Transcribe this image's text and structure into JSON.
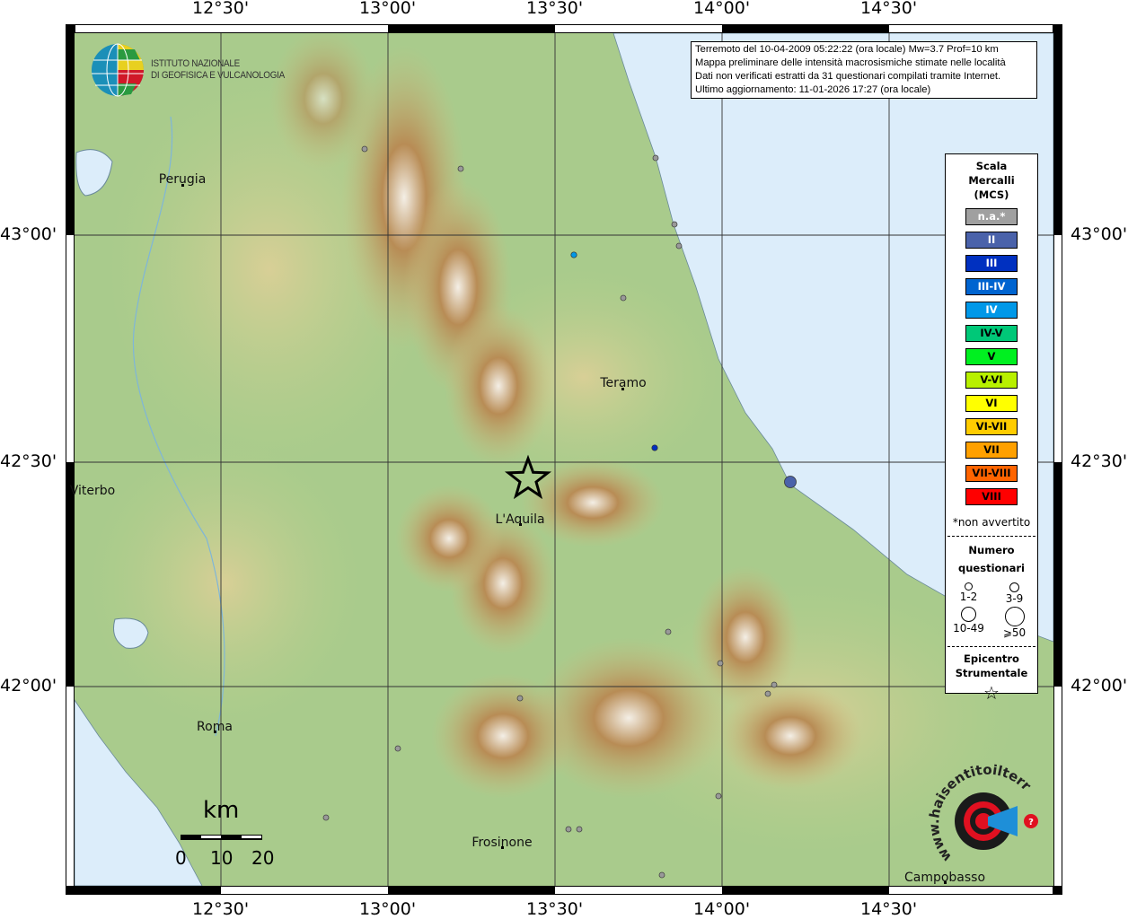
{
  "axes": {
    "lon_ticks": [
      "12°30'",
      "13°00'",
      "13°30'",
      "14°00'",
      "14°30'"
    ],
    "lat_ticks": [
      "43°00'",
      "42°30'",
      "42°00'"
    ]
  },
  "logo_ingv": {
    "line1": "ISTITUTO NAZIONALE",
    "line2": "DI GEOFISICA E VULCANOLOGIA"
  },
  "logo_hsit": {
    "text": "www.haisentitoilterremoto.it"
  },
  "info": {
    "line1": "Terremoto del 10-04-2009 05:22:22 (ora locale) Mw=3.7 Prof=10 km",
    "line2": "Mappa preliminare delle intensità macrosismiche stimate nelle località",
    "line3": "Dati non verificati estratti da 31 questionari compilati tramite Internet.",
    "line4": "Ultimo aggiornamento: 11-01-2026 17:27 (ora locale)"
  },
  "cities": [
    {
      "name": "Perugia"
    },
    {
      "name": "Teramo"
    },
    {
      "name": "Viterbo"
    },
    {
      "name": "L'Aquila"
    },
    {
      "name": "Roma"
    },
    {
      "name": "Frosinone"
    },
    {
      "name": "Campobasso"
    }
  ],
  "legend": {
    "title": [
      "Scala",
      "Mercalli",
      "(MCS)"
    ],
    "scale": [
      {
        "label": "n.a.*",
        "color": "#a0a0a0",
        "text": "#ffffff"
      },
      {
        "label": "II",
        "color": "#4a62aa",
        "text": "#ffffff"
      },
      {
        "label": "III",
        "color": "#0030c0",
        "text": "#ffffff"
      },
      {
        "label": "III-IV",
        "color": "#0064d0",
        "text": "#ffffff"
      },
      {
        "label": "IV",
        "color": "#0098e8",
        "text": "#ffffff"
      },
      {
        "label": "IV-V",
        "color": "#00c878",
        "text": "#000000"
      },
      {
        "label": "V",
        "color": "#00f020",
        "text": "#000000"
      },
      {
        "label": "V-VI",
        "color": "#b8f000",
        "text": "#000000"
      },
      {
        "label": "VI",
        "color": "#ffff00",
        "text": "#000000"
      },
      {
        "label": "VI-VII",
        "color": "#ffcc00",
        "text": "#000000"
      },
      {
        "label": "VII",
        "color": "#ffa000",
        "text": "#000000"
      },
      {
        "label": "VII-VIII",
        "color": "#ff6400",
        "text": "#000000"
      },
      {
        "label": "VIII",
        "color": "#ff0000",
        "text": "#000000"
      }
    ],
    "note": "*non avvertito",
    "questionnaires_title": [
      "Numero",
      "questionari"
    ],
    "questionnaires": [
      "1-2",
      "3-9",
      "10-49",
      "⩾50"
    ],
    "epicenter_title": [
      "Epicentro",
      "Strumentale"
    ]
  },
  "scalebar": {
    "unit": "km",
    "labels": [
      "0",
      "10",
      "20"
    ]
  },
  "observations": [
    {
      "intensity": "IV",
      "questionnaires": "1-2"
    },
    {
      "intensity": "III",
      "questionnaires": "1-2"
    },
    {
      "intensity": "II",
      "questionnaires": "3-9"
    }
  ],
  "colors": {
    "sea": "#dcedfa",
    "lowland": "#9cc68a",
    "hills": "#d4d49a",
    "mountain": "#b48a52",
    "peak": "#ffffff"
  }
}
